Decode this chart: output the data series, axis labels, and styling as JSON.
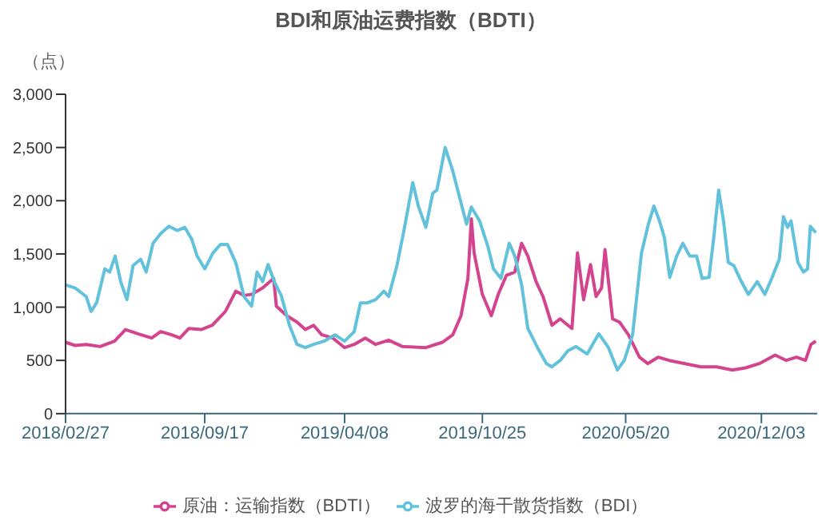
{
  "chart_data": {
    "type": "line",
    "title": "BDI和原油运费指数（BDTI）",
    "ylabel": "（点）",
    "xlim": [
      "2018-02-27",
      "2021-02-22"
    ],
    "xticks": [
      {
        "value": "2018-02-27",
        "label": "2018/02/27"
      },
      {
        "value": "2018-09-17",
        "label": "2018/09/17"
      },
      {
        "value": "2019-04-08",
        "label": "2019/04/08"
      },
      {
        "value": "2019-10-25",
        "label": "2019/10/25"
      },
      {
        "value": "2020-05-20",
        "label": "2020/05/20"
      },
      {
        "value": "2020-12-03",
        "label": "2020/12/03"
      }
    ],
    "ylim": [
      0,
      3000
    ],
    "yticks": [
      0,
      500,
      {
        "value": 1000,
        "label": "1,000"
      },
      {
        "value": 1500,
        "label": "1,500"
      },
      {
        "value": 2000,
        "label": "2,000"
      },
      {
        "value": 2500,
        "label": "2,500"
      },
      {
        "value": 3000,
        "label": "3,000"
      }
    ],
    "legend": "bottom",
    "marker": "none",
    "line_style": "solid",
    "series": [
      {
        "name": "原油：运输指数（BDTI）",
        "color": "#d4438d",
        "x": [
          "2018-02-27",
          "2018-03-13",
          "2018-03-29",
          "2018-04-18",
          "2018-05-09",
          "2018-05-25",
          "2018-06-12",
          "2018-07-02",
          "2018-07-15",
          "2018-07-31",
          "2018-08-12",
          "2018-08-25",
          "2018-09-12",
          "2018-09-28",
          "2018-10-17",
          "2018-11-01",
          "2018-11-13",
          "2018-11-24",
          "2018-12-10",
          "2018-12-26",
          "2018-12-30",
          "2019-01-14",
          "2019-01-29",
          "2019-02-10",
          "2019-02-22",
          "2019-03-06",
          "2019-03-22",
          "2019-04-08",
          "2019-04-22",
          "2019-05-08",
          "2019-05-23",
          "2019-06-11",
          "2019-07-01",
          "2019-08-04",
          "2019-08-28",
          "2019-09-12",
          "2019-09-24",
          "2019-10-04",
          "2019-10-09",
          "2019-10-13",
          "2019-10-25",
          "2019-11-07",
          "2019-11-17",
          "2019-11-29",
          "2019-12-11",
          "2019-12-21",
          "2019-12-30",
          "2020-01-11",
          "2020-01-21",
          "2020-02-03",
          "2020-02-15",
          "2020-03-03",
          "2020-03-11",
          "2020-03-20",
          "2020-03-30",
          "2020-04-07",
          "2020-04-15",
          "2020-04-20",
          "2020-05-01",
          "2020-05-11",
          "2020-05-24",
          "2020-06-09",
          "2020-06-21",
          "2020-07-06",
          "2020-07-22",
          "2020-08-14",
          "2020-09-06",
          "2020-09-29",
          "2020-10-22",
          "2020-11-10",
          "2020-11-30",
          "2020-12-23",
          "2021-01-08",
          "2021-01-23",
          "2021-02-05",
          "2021-02-13",
          "2021-02-20"
        ],
        "values": [
          670,
          640,
          650,
          630,
          680,
          790,
          750,
          710,
          770,
          740,
          710,
          800,
          790,
          830,
          960,
          1150,
          1110,
          1120,
          1180,
          1270,
          1010,
          920,
          860,
          790,
          830,
          740,
          710,
          620,
          650,
          710,
          650,
          690,
          630,
          620,
          670,
          740,
          920,
          1270,
          1830,
          1510,
          1120,
          920,
          1120,
          1300,
          1330,
          1600,
          1480,
          1240,
          1100,
          830,
          890,
          800,
          1510,
          1070,
          1400,
          1100,
          1180,
          1540,
          890,
          860,
          740,
          530,
          470,
          530,
          500,
          470,
          440,
          440,
          410,
          430,
          470,
          550,
          500,
          530,
          500,
          650,
          680
        ]
      },
      {
        "name": "波罗的海干散货指数（BDI）",
        "color": "#62c2dc",
        "x": [
          "2018-02-27",
          "2018-03-13",
          "2018-03-29",
          "2018-04-05",
          "2018-04-13",
          "2018-04-25",
          "2018-05-02",
          "2018-05-10",
          "2018-05-18",
          "2018-05-27",
          "2018-06-05",
          "2018-06-16",
          "2018-06-24",
          "2018-07-04",
          "2018-07-15",
          "2018-07-27",
          "2018-08-08",
          "2018-08-19",
          "2018-08-29",
          "2018-09-06",
          "2018-09-17",
          "2018-09-29",
          "2018-10-10",
          "2018-10-20",
          "2018-11-01",
          "2018-11-13",
          "2018-11-24",
          "2018-12-02",
          "2018-12-10",
          "2018-12-18",
          "2018-12-27",
          "2019-01-06",
          "2019-01-18",
          "2019-01-29",
          "2019-02-10",
          "2019-02-22",
          "2019-03-09",
          "2019-03-25",
          "2019-04-08",
          "2019-04-22",
          "2019-05-01",
          "2019-05-11",
          "2019-05-23",
          "2019-06-04",
          "2019-06-11",
          "2019-06-23",
          "2019-07-04",
          "2019-07-16",
          "2019-07-24",
          "2019-08-04",
          "2019-08-14",
          "2019-08-20",
          "2019-09-01",
          "2019-09-12",
          "2019-09-24",
          "2019-10-02",
          "2019-10-09",
          "2019-10-21",
          "2019-11-02",
          "2019-11-10",
          "2019-11-21",
          "2019-12-03",
          "2019-12-11",
          "2019-12-21",
          "2019-12-30",
          "2020-01-13",
          "2020-01-26",
          "2020-02-03",
          "2020-02-15",
          "2020-02-26",
          "2020-03-09",
          "2020-03-25",
          "2020-04-11",
          "2020-04-25",
          "2020-05-08",
          "2020-05-18",
          "2020-05-30",
          "2020-06-12",
          "2020-06-22",
          "2020-06-30",
          "2020-07-07",
          "2020-07-15",
          "2020-07-23",
          "2020-08-02",
          "2020-08-11",
          "2020-08-21",
          "2020-08-31",
          "2020-09-08",
          "2020-09-18",
          "2020-09-25",
          "2020-10-02",
          "2020-10-09",
          "2020-10-16",
          "2020-10-24",
          "2020-11-04",
          "2020-11-14",
          "2020-11-27",
          "2020-12-08",
          "2020-12-18",
          "2020-12-29",
          "2021-01-04",
          "2021-01-10",
          "2021-01-15",
          "2021-01-25",
          "2021-02-02",
          "2021-02-08",
          "2021-02-12",
          "2021-02-20"
        ],
        "values": [
          1210,
          1180,
          1100,
          960,
          1040,
          1360,
          1330,
          1480,
          1240,
          1070,
          1390,
          1450,
          1330,
          1600,
          1690,
          1760,
          1720,
          1750,
          1640,
          1480,
          1360,
          1510,
          1590,
          1590,
          1420,
          1100,
          1010,
          1330,
          1240,
          1400,
          1240,
          1110,
          830,
          650,
          620,
          650,
          680,
          740,
          680,
          770,
          1040,
          1040,
          1070,
          1150,
          1100,
          1390,
          1750,
          2170,
          1950,
          1750,
          2070,
          2100,
          2500,
          2280,
          1980,
          1780,
          1940,
          1810,
          1570,
          1360,
          1270,
          1600,
          1480,
          1210,
          800,
          620,
          470,
          440,
          500,
          590,
          630,
          560,
          750,
          620,
          410,
          500,
          740,
          1510,
          1780,
          1950,
          1830,
          1660,
          1280,
          1480,
          1600,
          1480,
          1480,
          1270,
          1280,
          1660,
          2100,
          1810,
          1420,
          1390,
          1240,
          1120,
          1240,
          1120,
          1270,
          1450,
          1850,
          1750,
          1810,
          1420,
          1330,
          1360,
          1760,
          1700
        ]
      }
    ]
  }
}
